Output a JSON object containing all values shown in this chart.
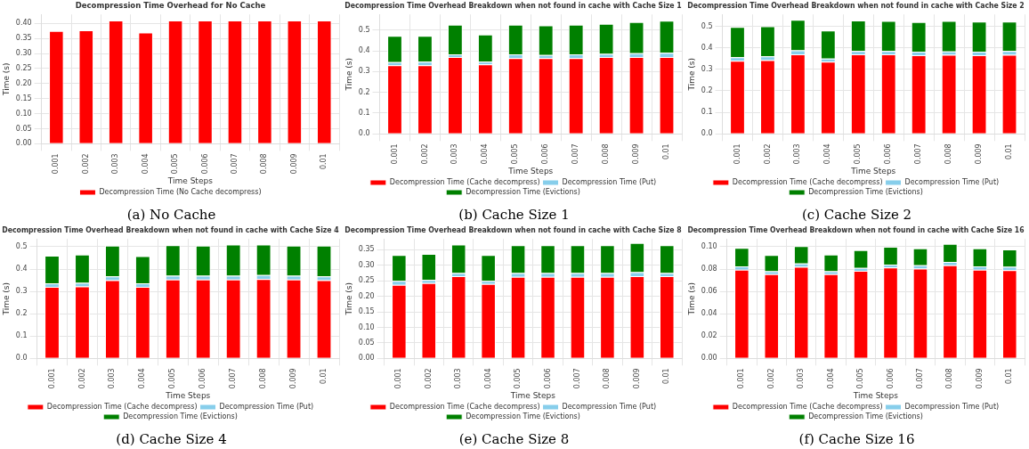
{
  "chart_data": [
    {
      "type": "bar",
      "title": "Decompression Time Overhead for No Cache",
      "xlabel": "Time Steps",
      "ylabel": "Time (s)",
      "categories": [
        "0.001",
        "0.002",
        "0.003",
        "0.004",
        "0.005",
        "0.006",
        "0.007",
        "0.008",
        "0.009",
        "0.01"
      ],
      "series": [
        {
          "name": "Decompression Time (No Cache decompress)",
          "color": "#ff0000",
          "values": [
            0.375,
            0.377,
            0.41,
            0.37,
            0.41,
            0.41,
            0.41,
            0.41,
            0.41,
            0.41
          ]
        }
      ],
      "ylim": [
        0,
        0.43
      ],
      "yticks": [
        {
          "value": 0,
          "label": "0.00"
        },
        {
          "value": 0.05,
          "label": "0.05"
        },
        {
          "value": 0.1,
          "label": "0.10"
        },
        {
          "value": 0.15,
          "label": "0.15"
        },
        {
          "value": 0.2,
          "label": "0.20"
        },
        {
          "value": 0.25,
          "label": "0.25"
        },
        {
          "value": 0.3,
          "label": "0.30"
        },
        {
          "value": 0.35,
          "label": "0.35"
        },
        {
          "value": 0.4,
          "label": "0.40"
        }
      ],
      "grid": true,
      "legend": "bottom",
      "annotations": [
        "(a) No Cache"
      ]
    },
    {
      "type": "bar",
      "title": "Decompression Time Overhead Breakdown when not found in cache with Cache Size 1",
      "xlabel": "Time Steps",
      "ylabel": "Time (s)",
      "categories": [
        "0.001",
        "0.002",
        "0.003",
        "0.004",
        "0.005",
        "0.006",
        "0.007",
        "0.008",
        "0.009",
        "0.01"
      ],
      "stacked": true,
      "series": [
        {
          "name": "Decompression Time (Cache decompress)",
          "color": "#ff0000",
          "values": [
            0.33,
            0.33,
            0.37,
            0.335,
            0.365,
            0.365,
            0.365,
            0.37,
            0.37,
            0.37
          ]
        },
        {
          "name": "Decompression Time (Put)",
          "color": "#87ceeb",
          "values": [
            0.015,
            0.017,
            0.013,
            0.013,
            0.018,
            0.015,
            0.018,
            0.015,
            0.018,
            0.02
          ]
        },
        {
          "name": "Decompression Time (Evictions)",
          "color": "#008000",
          "values": [
            0.127,
            0.125,
            0.142,
            0.13,
            0.142,
            0.142,
            0.142,
            0.145,
            0.15,
            0.155
          ]
        }
      ],
      "ylim": [
        0,
        0.575
      ],
      "yticks": [
        {
          "value": 0,
          "label": "0.0"
        },
        0.1,
        0.2,
        0.3,
        0.4,
        0.5
      ],
      "grid": true,
      "legend": "bottom",
      "annotations": [
        "(b) Cache Size 1"
      ]
    },
    {
      "type": "bar",
      "title": "Decompression Time Overhead Breakdown when not found in cache with Cache Size 2",
      "xlabel": "Time Steps",
      "ylabel": "Time (s)",
      "categories": [
        "0.001",
        "0.002",
        "0.003",
        "0.004",
        "0.005",
        "0.006",
        "0.007",
        "0.008",
        "0.009",
        "0.01"
      ],
      "stacked": true,
      "series": [
        {
          "name": "Decompression Time (Cache decompress)",
          "color": "#ff0000",
          "values": [
            0.34,
            0.343,
            0.37,
            0.335,
            0.37,
            0.37,
            0.365,
            0.367,
            0.365,
            0.367
          ]
        },
        {
          "name": "Decompression Time (Put)",
          "color": "#87ceeb",
          "values": [
            0.016,
            0.017,
            0.018,
            0.015,
            0.015,
            0.015,
            0.017,
            0.016,
            0.017,
            0.018
          ]
        },
        {
          "name": "Decompression Time (Evictions)",
          "color": "#008000",
          "values": [
            0.141,
            0.14,
            0.142,
            0.13,
            0.142,
            0.14,
            0.138,
            0.142,
            0.14,
            0.137
          ]
        }
      ],
      "ylim": [
        0,
        0.555
      ],
      "yticks": [
        {
          "value": 0,
          "label": "0.0"
        },
        0.1,
        0.2,
        0.3,
        0.4,
        0.5
      ],
      "grid": true,
      "legend": "bottom",
      "annotations": [
        "(c) Cache Size 2"
      ]
    },
    {
      "type": "bar",
      "title": "Decompression Time Overhead Breakdown when not found in cache with Cache Size 4",
      "xlabel": "Time Steps",
      "ylabel": "Time (s)",
      "categories": [
        "0.001",
        "0.002",
        "0.003",
        "0.004",
        "0.005",
        "0.006",
        "0.007",
        "0.008",
        "0.009",
        "0.01"
      ],
      "stacked": true,
      "series": [
        {
          "name": "Decompression Time (Cache decompress)",
          "color": "#ff0000",
          "values": [
            0.32,
            0.322,
            0.35,
            0.32,
            0.353,
            0.353,
            0.353,
            0.355,
            0.353,
            0.35
          ]
        },
        {
          "name": "Decompression Time (Put)",
          "color": "#87ceeb",
          "values": [
            0.016,
            0.016,
            0.017,
            0.016,
            0.017,
            0.017,
            0.017,
            0.018,
            0.017,
            0.017
          ]
        },
        {
          "name": "Decompression Time (Evictions)",
          "color": "#008000",
          "values": [
            0.124,
            0.127,
            0.138,
            0.122,
            0.137,
            0.135,
            0.14,
            0.137,
            0.135,
            0.138
          ]
        }
      ],
      "ylim": [
        0,
        0.535
      ],
      "yticks": [
        {
          "value": 0,
          "label": "0.0"
        },
        0.1,
        0.2,
        0.3,
        0.4,
        0.5
      ],
      "grid": true,
      "legend": "bottom",
      "annotations": [
        "(d) Cache Size 4"
      ]
    },
    {
      "type": "bar",
      "title": "Decompression Time Overhead Breakdown when not found in cache with Cache Size 8",
      "xlabel": "Time Steps",
      "ylabel": "Time (s)",
      "categories": [
        "0.001",
        "0.002",
        "0.003",
        "0.004",
        "0.005",
        "0.006",
        "0.007",
        "0.008",
        "0.009",
        "0.01"
      ],
      "stacked": true,
      "series": [
        {
          "name": "Decompression Time (Cache decompress)",
          "color": "#ff0000",
          "values": [
            0.237,
            0.243,
            0.265,
            0.24,
            0.263,
            0.263,
            0.263,
            0.263,
            0.265,
            0.265
          ]
        },
        {
          "name": "Decompression Time (Put)",
          "color": "#87ceeb",
          "values": [
            0.013,
            0.01,
            0.01,
            0.01,
            0.012,
            0.012,
            0.012,
            0.012,
            0.013,
            0.01
          ]
        },
        {
          "name": "Decompression Time (Evictions)",
          "color": "#008000",
          "values": [
            0.083,
            0.084,
            0.092,
            0.083,
            0.09,
            0.09,
            0.09,
            0.09,
            0.094,
            0.09
          ]
        }
      ],
      "ylim": [
        0,
        0.385
      ],
      "yticks": [
        {
          "value": 0,
          "label": "0.00"
        },
        {
          "value": 0.05,
          "label": "0.05"
        },
        {
          "value": 0.1,
          "label": "0.10"
        },
        {
          "value": 0.15,
          "label": "0.15"
        },
        {
          "value": 0.2,
          "label": "0.20"
        },
        {
          "value": 0.25,
          "label": "0.25"
        },
        {
          "value": 0.3,
          "label": "0.30"
        },
        {
          "value": 0.35,
          "label": "0.35"
        }
      ],
      "grid": true,
      "legend": "bottom",
      "annotations": [
        "(e) Cache Size 8"
      ]
    },
    {
      "type": "bar",
      "title": "Decompression Time Overhead Breakdown when not found in cache with Cache Size 16",
      "xlabel": "Time Steps",
      "ylabel": "Time (s)",
      "categories": [
        "0.001",
        "0.002",
        "0.003",
        "0.004",
        "0.005",
        "0.006",
        "0.007",
        "0.008",
        "0.009",
        "0.01"
      ],
      "stacked": true,
      "series": [
        {
          "name": "Decompression Time (Cache decompress)",
          "color": "#ff0000",
          "values": [
            0.0795,
            0.0755,
            0.082,
            0.0755,
            0.0785,
            0.0815,
            0.0805,
            0.0835,
            0.0795,
            0.079
          ]
        },
        {
          "name": "Decompression Time (Put)",
          "color": "#87ceeb",
          "values": [
            0.003,
            0.0025,
            0.003,
            0.0025,
            0.0025,
            0.0025,
            0.003,
            0.003,
            0.003,
            0.003
          ]
        },
        {
          "name": "Decompression Time (Evictions)",
          "color": "#008000",
          "values": [
            0.0165,
            0.0145,
            0.0155,
            0.015,
            0.016,
            0.016,
            0.015,
            0.016,
            0.016,
            0.0155
          ]
        }
      ],
      "ylim": [
        0,
        0.107
      ],
      "yticks": [
        {
          "value": 0,
          "label": "0.00"
        },
        {
          "value": 0.02,
          "label": "0.02"
        },
        {
          "value": 0.04,
          "label": "0.04"
        },
        {
          "value": 0.06,
          "label": "0.06"
        },
        {
          "value": 0.08,
          "label": "0.08"
        },
        {
          "value": 0.1,
          "label": "0.10"
        }
      ],
      "grid": true,
      "legend": "bottom",
      "annotations": [
        "(f) Cache Size 16"
      ]
    }
  ]
}
